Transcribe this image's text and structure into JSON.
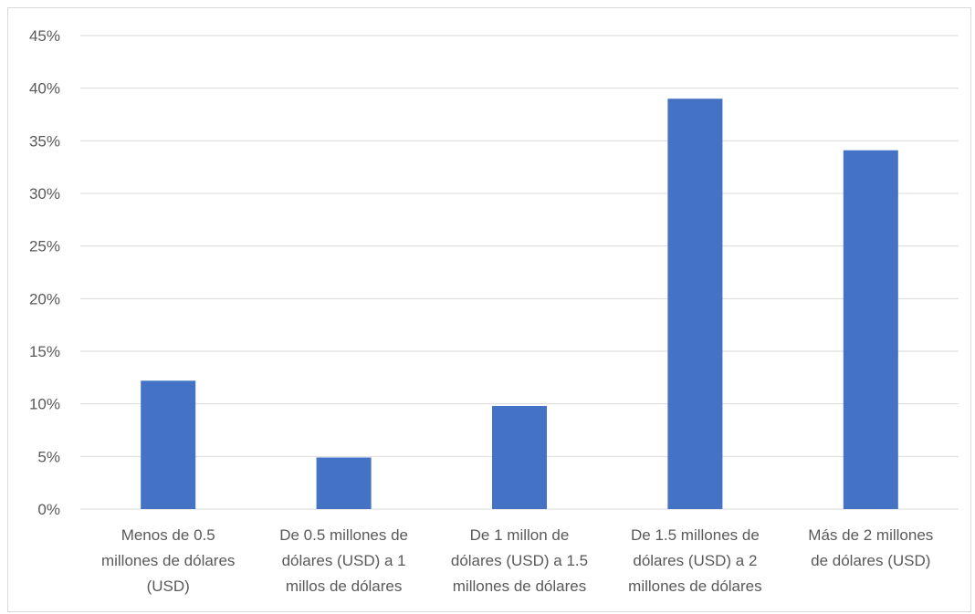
{
  "chart_data": {
    "type": "bar",
    "categories": [
      [
        "Menos de 0.5",
        "millones de dólares",
        "(USD)"
      ],
      [
        "De 0.5 millones de",
        "dólares (USD) a 1",
        "millos de dólares"
      ],
      [
        "De 1 millon de",
        "dólares (USD) a 1.5",
        "millones de dólares"
      ],
      [
        "De 1.5 millones de",
        "dólares (USD) a 2",
        "millones de dólares"
      ],
      [
        "Más de 2 millones",
        "de dólares (USD)"
      ]
    ],
    "values": [
      12.2,
      4.9,
      9.8,
      39.0,
      34.1
    ],
    "value_unit": "%",
    "yticks": [
      "0%",
      "5%",
      "10%",
      "15%",
      "20%",
      "25%",
      "30%",
      "35%",
      "40%",
      "45%"
    ],
    "ylim": [
      0,
      45
    ],
    "grid": true,
    "legend": "none",
    "bar_color": "#4472c4",
    "gridline_color": "#d9d9d9"
  }
}
